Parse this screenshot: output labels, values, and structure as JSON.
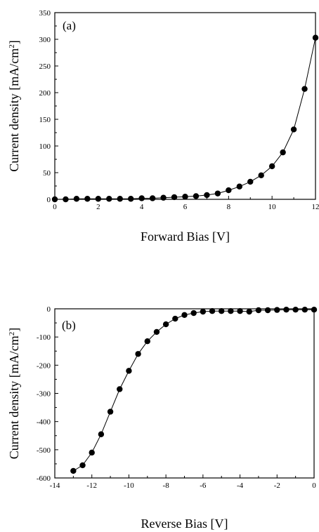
{
  "chart_data": [
    {
      "type": "line",
      "panel_label": "(a)",
      "xlabel": "Forward Bias [V]",
      "ylabel": "Current density [mA/cm²]",
      "ylabel_main": "Current density [mA/cm",
      "ylabel_sup": "2",
      "ylabel_tail": "]",
      "xlim": [
        0,
        12
      ],
      "ylim": [
        0,
        350
      ],
      "x_ticks": [
        0,
        2,
        4,
        6,
        8,
        10,
        12
      ],
      "y_ticks": [
        0,
        50,
        100,
        150,
        200,
        250,
        300,
        350
      ],
      "grid": false,
      "marker": "filled-circle",
      "series": [
        {
          "x": [
            0,
            0.5,
            1,
            1.5,
            2,
            2.5,
            3,
            3.5,
            4,
            4.5,
            5,
            5.5,
            6,
            6.5,
            7,
            7.5,
            8,
            8.5,
            9,
            9.5,
            10,
            10.5,
            11,
            11.5,
            12
          ],
          "y": [
            0,
            0,
            1,
            1,
            1,
            1,
            1,
            1,
            2,
            2,
            3,
            4,
            5,
            6,
            8,
            11,
            17,
            24,
            33,
            45,
            62,
            88,
            131,
            207,
            303
          ]
        }
      ]
    },
    {
      "type": "line",
      "panel_label": "(b)",
      "xlabel": "Reverse Bias [V]",
      "ylabel": "Current density [mA/cm²]",
      "ylabel_main": "Current density [mA/cm",
      "ylabel_sup": "2",
      "ylabel_tail": "]",
      "xlim": [
        -14,
        0
      ],
      "ylim": [
        -600,
        0
      ],
      "x_ticks": [
        -14,
        -12,
        -10,
        -8,
        -6,
        -4,
        -2,
        0
      ],
      "y_ticks": [
        -600,
        -500,
        -400,
        -300,
        -200,
        -100,
        0
      ],
      "grid": false,
      "marker": "filled-circle",
      "series": [
        {
          "x": [
            -13,
            -12.5,
            -12,
            -11.5,
            -11,
            -10.5,
            -10,
            -9.5,
            -9,
            -8.5,
            -8,
            -7.5,
            -7,
            -6.5,
            -6,
            -5.5,
            -5,
            -4.5,
            -4,
            -3.5,
            -3,
            -2.5,
            -2,
            -1.5,
            -1,
            -0.5,
            0
          ],
          "y": [
            -575,
            -555,
            -510,
            -445,
            -365,
            -285,
            -220,
            -160,
            -115,
            -82,
            -55,
            -35,
            -22,
            -15,
            -10,
            -8,
            -8,
            -8,
            -8,
            -10,
            -5,
            -5,
            -4,
            -3,
            -3,
            -3,
            -3
          ]
        }
      ]
    }
  ]
}
